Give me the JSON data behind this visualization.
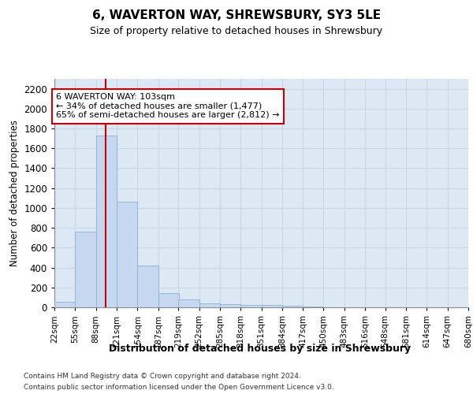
{
  "title": "6, WAVERTON WAY, SHREWSBURY, SY3 5LE",
  "subtitle": "Size of property relative to detached houses in Shrewsbury",
  "xlabel": "Distribution of detached houses by size in Shrewsbury",
  "ylabel": "Number of detached properties",
  "bar_color": "#c5d8ef",
  "bar_edge_color": "#8ab0d8",
  "grid_color": "#c8d8e8",
  "background_color": "#dce8f4",
  "bins": [
    22,
    55,
    88,
    121,
    154,
    187,
    219,
    252,
    285,
    318,
    351,
    384,
    417,
    450,
    483,
    516,
    548,
    581,
    614,
    647,
    680
  ],
  "values": [
    55,
    760,
    1730,
    1060,
    420,
    145,
    80,
    42,
    35,
    25,
    20,
    14,
    5,
    0,
    0,
    0,
    0,
    0,
    0,
    0
  ],
  "tick_labels": [
    "22sqm",
    "55sqm",
    "88sqm",
    "121sqm",
    "154sqm",
    "187sqm",
    "219sqm",
    "252sqm",
    "285sqm",
    "318sqm",
    "351sqm",
    "384sqm",
    "417sqm",
    "450sqm",
    "483sqm",
    "516sqm",
    "548sqm",
    "581sqm",
    "614sqm",
    "647sqm",
    "680sqm"
  ],
  "property_size": 103,
  "annotation_line1": "6 WAVERTON WAY: 103sqm",
  "annotation_line2": "← 34% of detached houses are smaller (1,477)",
  "annotation_line3": "65% of semi-detached houses are larger (2,812) →",
  "red_line_color": "#cc0000",
  "annotation_box_edge": "#cc0000",
  "ylim": [
    0,
    2300
  ],
  "yticks": [
    0,
    200,
    400,
    600,
    800,
    1000,
    1200,
    1400,
    1600,
    1800,
    2000,
    2200
  ],
  "footer_line1": "Contains HM Land Registry data © Crown copyright and database right 2024.",
  "footer_line2": "Contains public sector information licensed under the Open Government Licence v3.0."
}
